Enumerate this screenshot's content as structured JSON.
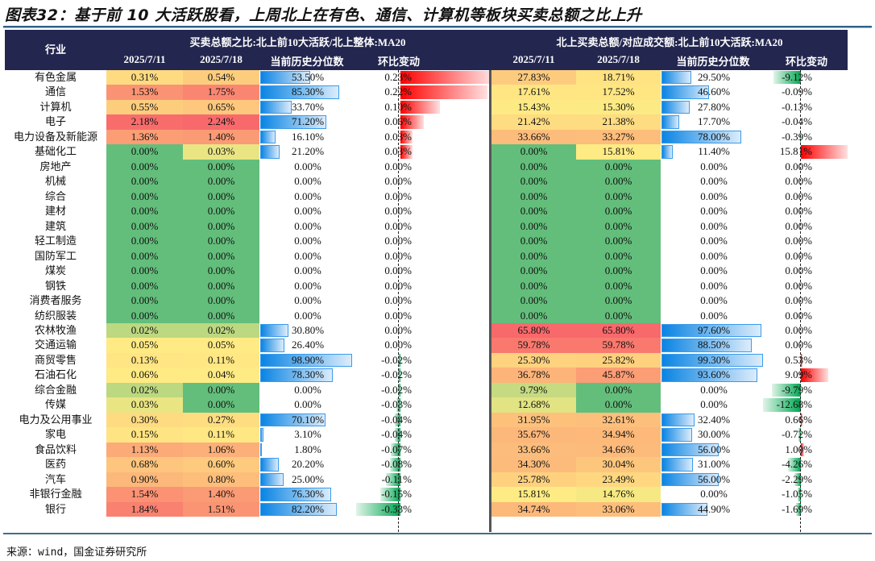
{
  "title": "图表32：基于前 10 大活跃股看，上周北上在有色、通信、计算机等板块买卖总额之比上升",
  "header": {
    "industry": "行业",
    "group_left": "买卖总额之比:北上前10大活跃/北上整体:MA20",
    "group_right": "北上买卖总额/对应成交额:北上前10大活跃:MA20",
    "cols": [
      "2025/7/11",
      "2025/7/18",
      "当前历史分位数",
      "环比变动"
    ]
  },
  "colors": {
    "header_bg": "#23264f",
    "green": "#63be7b",
    "yellow": "#ffeb84",
    "red": "#f8696b",
    "bar_blue": "#0a84e3"
  },
  "rows": [
    [
      "有色金属",
      "0.31%",
      "0.54%",
      "53.50%",
      "0.23%",
      "27.83%",
      "18.71%",
      "29.50%",
      "-9.12%"
    ],
    [
      "通信",
      "1.53%",
      "1.75%",
      "85.30%",
      "0.22%",
      "17.61%",
      "17.52%",
      "46.60%",
      "-0.09%"
    ],
    [
      "计算机",
      "0.55%",
      "0.65%",
      "33.70%",
      "0.10%",
      "15.43%",
      "15.30%",
      "27.80%",
      "-0.13%"
    ],
    [
      "电子",
      "2.18%",
      "2.24%",
      "71.20%",
      "0.06%",
      "21.42%",
      "21.38%",
      "17.70%",
      "-0.04%"
    ],
    [
      "电力设备及新能源",
      "1.36%",
      "1.40%",
      "16.10%",
      "0.03%",
      "33.66%",
      "33.27%",
      "78.00%",
      "-0.39%"
    ],
    [
      "基础化工",
      "0.00%",
      "0.03%",
      "21.20%",
      "0.03%",
      "0.00%",
      "15.81%",
      "11.40%",
      "15.81%"
    ],
    [
      "房地产",
      "0.00%",
      "0.00%",
      "0.00%",
      "0.00%",
      "0.00%",
      "0.00%",
      "0.00%",
      "0.00%"
    ],
    [
      "机械",
      "0.00%",
      "0.00%",
      "0.00%",
      "0.00%",
      "0.00%",
      "0.00%",
      "0.00%",
      "0.00%"
    ],
    [
      "综合",
      "0.00%",
      "0.00%",
      "0.00%",
      "0.00%",
      "0.00%",
      "0.00%",
      "0.00%",
      "0.00%"
    ],
    [
      "建材",
      "0.00%",
      "0.00%",
      "0.00%",
      "0.00%",
      "0.00%",
      "0.00%",
      "0.00%",
      "0.00%"
    ],
    [
      "建筑",
      "0.00%",
      "0.00%",
      "0.00%",
      "0.00%",
      "0.00%",
      "0.00%",
      "0.00%",
      "0.00%"
    ],
    [
      "轻工制造",
      "0.00%",
      "0.00%",
      "0.00%",
      "0.00%",
      "0.00%",
      "0.00%",
      "0.00%",
      "0.00%"
    ],
    [
      "国防军工",
      "0.00%",
      "0.00%",
      "0.00%",
      "0.00%",
      "0.00%",
      "0.00%",
      "0.00%",
      "0.00%"
    ],
    [
      "煤炭",
      "0.00%",
      "0.00%",
      "0.00%",
      "0.00%",
      "0.00%",
      "0.00%",
      "0.00%",
      "0.00%"
    ],
    [
      "钢铁",
      "0.00%",
      "0.00%",
      "0.00%",
      "0.00%",
      "0.00%",
      "0.00%",
      "0.00%",
      "0.00%"
    ],
    [
      "消费者服务",
      "0.00%",
      "0.00%",
      "0.00%",
      "0.00%",
      "0.00%",
      "0.00%",
      "0.00%",
      "0.00%"
    ],
    [
      "纺织服装",
      "0.00%",
      "0.00%",
      "0.00%",
      "0.00%",
      "0.00%",
      "0.00%",
      "0.00%",
      "0.00%"
    ],
    [
      "农林牧渔",
      "0.02%",
      "0.02%",
      "30.80%",
      "0.00%",
      "65.80%",
      "65.80%",
      "97.60%",
      "0.00%"
    ],
    [
      "交通运输",
      "0.05%",
      "0.05%",
      "26.40%",
      "0.00%",
      "59.78%",
      "59.78%",
      "88.50%",
      "0.00%"
    ],
    [
      "商贸零售",
      "0.13%",
      "0.11%",
      "98.90%",
      "-0.02%",
      "25.30%",
      "25.82%",
      "99.30%",
      "0.53%"
    ],
    [
      "石油石化",
      "0.06%",
      "0.04%",
      "78.30%",
      "-0.02%",
      "36.78%",
      "45.87%",
      "93.60%",
      "9.09%"
    ],
    [
      "综合金融",
      "0.02%",
      "0.00%",
      "0.00%",
      "-0.02%",
      "9.79%",
      "0.00%",
      "0.00%",
      "-9.79%"
    ],
    [
      "传媒",
      "0.03%",
      "0.00%",
      "0.00%",
      "-0.03%",
      "12.68%",
      "0.00%",
      "0.00%",
      "-12.68%"
    ],
    [
      "电力及公用事业",
      "0.30%",
      "0.27%",
      "70.10%",
      "-0.04%",
      "31.95%",
      "32.61%",
      "32.40%",
      "0.66%"
    ],
    [
      "家电",
      "0.15%",
      "0.11%",
      "3.10%",
      "-0.04%",
      "35.67%",
      "34.94%",
      "30.00%",
      "-0.72%"
    ],
    [
      "食品饮料",
      "1.13%",
      "1.06%",
      "1.80%",
      "-0.07%",
      "33.66%",
      "34.66%",
      "56.00%",
      "1.00%"
    ],
    [
      "医药",
      "0.68%",
      "0.60%",
      "20.20%",
      "-0.08%",
      "34.30%",
      "30.04%",
      "31.00%",
      "-4.26%"
    ],
    [
      "汽车",
      "0.90%",
      "0.80%",
      "25.00%",
      "-0.11%",
      "25.78%",
      "23.49%",
      "56.00%",
      "-2.29%"
    ],
    [
      "非银行金融",
      "1.54%",
      "1.40%",
      "76.30%",
      "-0.15%",
      "15.81%",
      "14.76%",
      "0.00%",
      "-1.05%"
    ],
    [
      "银行",
      "1.84%",
      "1.51%",
      "82.20%",
      "-0.33%",
      "34.74%",
      "33.06%",
      "44.90%",
      "-1.69%"
    ]
  ],
  "source": "来源：wind，国金证券研究所"
}
